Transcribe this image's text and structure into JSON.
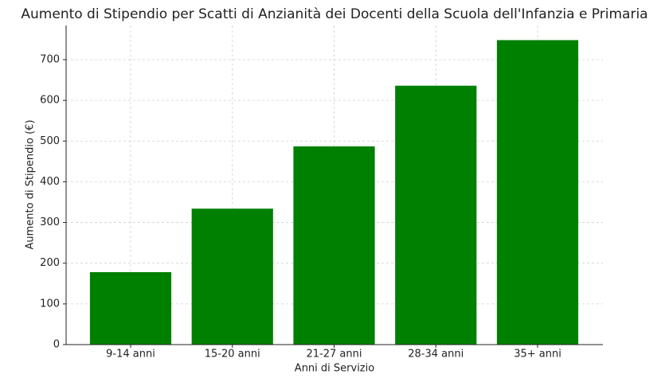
{
  "chart_data": {
    "type": "bar",
    "title": "Aumento di Stipendio per Scatti di Anzianità dei Docenti della Scuola dell'Infanzia e Primaria",
    "xlabel": "Anni di Servizio",
    "ylabel": "Aumento di Stipendio (€)",
    "categories": [
      "9-14 anni",
      "15-20 anni",
      "21-27 anni",
      "28-34 anni",
      "35+ anni"
    ],
    "values": [
      178,
      334,
      487,
      636,
      748
    ],
    "color": "#008000",
    "ylim": [
      0,
      784
    ],
    "yticks": [
      0,
      100,
      200,
      300,
      400,
      500,
      600,
      700
    ],
    "grid": true
  }
}
